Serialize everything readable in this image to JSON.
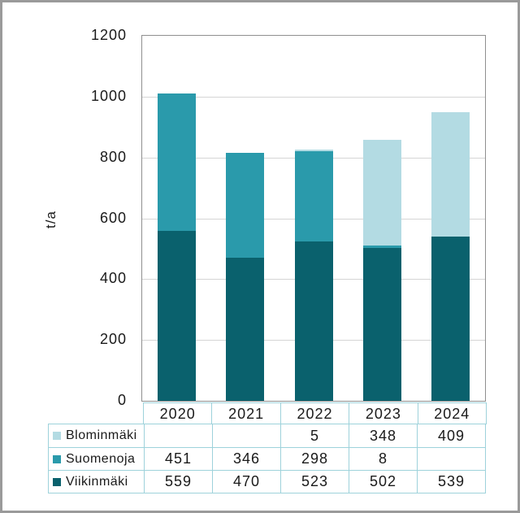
{
  "chart_data": {
    "type": "bar",
    "stacked": true,
    "categories": [
      "2020",
      "2021",
      "2022",
      "2023",
      "2024"
    ],
    "series": [
      {
        "name": "Viikinmäki",
        "color": "#0a616d",
        "values": [
          559,
          470,
          523,
          502,
          539
        ]
      },
      {
        "name": "Suomenoja",
        "color": "#2a9aab",
        "values": [
          451,
          346,
          298,
          8,
          null
        ]
      },
      {
        "name": "Blominmäki",
        "color": "#b3dbe3",
        "values": [
          null,
          null,
          5,
          348,
          409
        ]
      }
    ],
    "title": "",
    "xlabel": "",
    "ylabel": "t/a",
    "ylim": [
      0,
      1200
    ],
    "yticks": [
      0,
      200,
      400,
      600,
      800,
      1000,
      1200
    ],
    "grid": true,
    "legend_position": "data-table-below-chart"
  },
  "table": {
    "header_years": [
      "2020",
      "2021",
      "2022",
      "2023",
      "2024"
    ],
    "rows": [
      {
        "label": "Blominmäki",
        "swatch_color": "#b3dbe3",
        "values": [
          "",
          "",
          "5",
          "348",
          "409"
        ]
      },
      {
        "label": "Suomenoja",
        "swatch_color": "#2a9aab",
        "values": [
          "451",
          "346",
          "298",
          "8",
          ""
        ]
      },
      {
        "label": "Viikinmäki",
        "swatch_color": "#0a616d",
        "values": [
          "559",
          "470",
          "523",
          "502",
          "539"
        ]
      }
    ]
  },
  "colors": {
    "outer_border": "#9a9a9a",
    "plot_border": "#8f8f8f",
    "gridline": "#d5d5d5",
    "table_border": "#9ed2db",
    "text": "#1a1a1a"
  }
}
